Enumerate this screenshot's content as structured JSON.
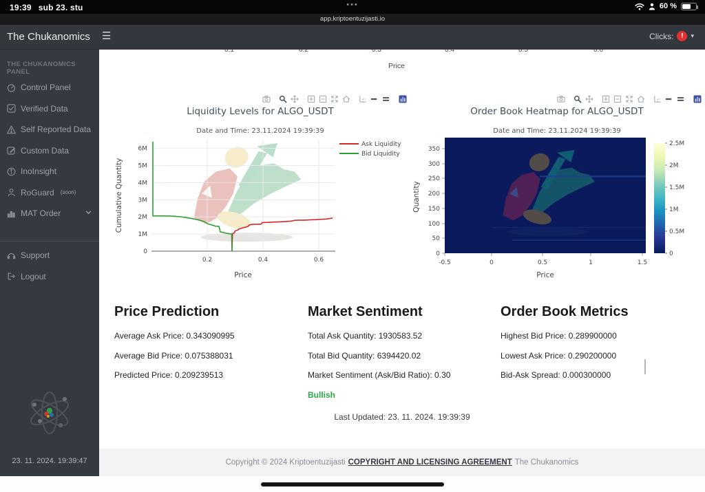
{
  "status_bar": {
    "time": "19:39",
    "date": "sub 23. stu",
    "dots": "•••",
    "battery_percent": "60 %"
  },
  "url_bar": {
    "url": "app.kriptoentuzijasti.io"
  },
  "header": {
    "brand": "The Chukanomics",
    "menu_icon": "☰",
    "clicks_label": "Clicks:",
    "clicks_badge": "!",
    "caret": "▾"
  },
  "sidebar": {
    "section_title": "THE CHUKANOMICS PANEL",
    "items": [
      {
        "label": "Control Panel",
        "icon": "gauge-icon"
      },
      {
        "label": "Verified Data",
        "icon": "check-square-icon"
      },
      {
        "label": "Self Reported Data",
        "icon": "warning-triangle-icon"
      },
      {
        "label": "Custom Data",
        "icon": "pencil-square-icon"
      },
      {
        "label": "InoInsight",
        "icon": "info-circle-icon"
      },
      {
        "label": "RoGuard",
        "suffix": "(soon)",
        "icon": "person-icon"
      },
      {
        "label": "MAT Order",
        "icon": "bar-chart-icon",
        "chevron": true
      }
    ],
    "footer_items": [
      {
        "label": "Support",
        "icon": "headset-icon"
      },
      {
        "label": "Logout",
        "icon": "logout-icon"
      }
    ],
    "timestamp": "23. 11. 2024. 19:39:47"
  },
  "top_chart_remnant": {
    "xticks": [
      "0.1",
      "0.2",
      "0.3",
      "0.4",
      "0.5",
      "0.6"
    ],
    "xlabel": "Price"
  },
  "charts_ui": {
    "modebar_icons": [
      "camera-icon",
      "magnifier-icon",
      "pan-icon",
      "zoom-in-icon",
      "zoom-out-icon",
      "autoscale-icon",
      "home-icon",
      "spikelines-icon",
      "hover-single-icon",
      "hover-compare-icon",
      "plotly-logo-icon"
    ]
  },
  "chart_data": [
    {
      "type": "line",
      "title": "Liquidity Levels for ALGO_USDT",
      "subtitle": "Date and Time: 23.11.2024 19:39:39",
      "xlabel": "Price",
      "ylabel": "Cumulative Quantity",
      "xlim": [
        0.0,
        0.66
      ],
      "ylim": [
        0,
        6500000
      ],
      "xticks": [
        "0.2",
        "0.4",
        "0.6"
      ],
      "yticks": [
        "0",
        "1M",
        "2M",
        "3M",
        "4M",
        "5M",
        "6M"
      ],
      "legend_position": "top-right",
      "grid": true,
      "series": [
        {
          "name": "Ask Liquidity",
          "color": "#d62728",
          "units": "millions",
          "points": [
            [
              0.289,
              0.02
            ],
            [
              0.291,
              1.02
            ],
            [
              0.295,
              1.05
            ],
            [
              0.298,
              1.08
            ],
            [
              0.3,
              1.17
            ],
            [
              0.303,
              1.2
            ],
            [
              0.308,
              1.22
            ],
            [
              0.312,
              1.26
            ],
            [
              0.315,
              1.3
            ],
            [
              0.322,
              1.33
            ],
            [
              0.328,
              1.36
            ],
            [
              0.334,
              1.39
            ],
            [
              0.34,
              1.41
            ],
            [
              0.347,
              1.44
            ],
            [
              0.35,
              1.52
            ],
            [
              0.354,
              1.54
            ],
            [
              0.36,
              1.56
            ],
            [
              0.368,
              1.57
            ],
            [
              0.378,
              1.57
            ],
            [
              0.394,
              1.58
            ],
            [
              0.398,
              1.67
            ],
            [
              0.42,
              1.68
            ],
            [
              0.44,
              1.7
            ],
            [
              0.46,
              1.71
            ],
            [
              0.48,
              1.73
            ],
            [
              0.5,
              1.75
            ],
            [
              0.515,
              1.8
            ],
            [
              0.53,
              1.81
            ],
            [
              0.55,
              1.81
            ],
            [
              0.57,
              1.83
            ],
            [
              0.59,
              1.84
            ],
            [
              0.61,
              1.86
            ],
            [
              0.63,
              1.88
            ],
            [
              0.65,
              1.93
            ]
          ]
        },
        {
          "name": "Bid Liquidity",
          "color": "#2ca02c",
          "units": "millions",
          "points": [
            [
              0.005,
              6.39
            ],
            [
              0.005,
              2.06
            ],
            [
              0.02,
              2.06
            ],
            [
              0.075,
              2.05
            ],
            [
              0.09,
              2.03
            ],
            [
              0.105,
              2.01
            ],
            [
              0.12,
              1.97
            ],
            [
              0.135,
              1.93
            ],
            [
              0.15,
              1.89
            ],
            [
              0.16,
              1.85
            ],
            [
              0.17,
              1.82
            ],
            [
              0.178,
              1.78
            ],
            [
              0.188,
              1.73
            ],
            [
              0.195,
              1.67
            ],
            [
              0.2,
              1.62
            ],
            [
              0.205,
              1.58
            ],
            [
              0.212,
              1.55
            ],
            [
              0.218,
              1.52
            ],
            [
              0.225,
              1.49
            ],
            [
              0.228,
              1.46
            ],
            [
              0.242,
              1.45
            ],
            [
              0.245,
              1.3
            ],
            [
              0.247,
              1.12
            ],
            [
              0.255,
              1.1
            ],
            [
              0.262,
              1.07
            ],
            [
              0.268,
              1.05
            ],
            [
              0.275,
              1.03
            ],
            [
              0.283,
              1.01
            ],
            [
              0.288,
              1.0
            ],
            [
              0.289,
              0.02
            ]
          ]
        }
      ]
    },
    {
      "type": "heatmap",
      "title": "Order Book Heatmap for ALGO_USDT",
      "subtitle": "Date and Time: 23.11.2024 19:39:39",
      "xlabel": "Price",
      "ylabel": "Quantity",
      "xticks": [
        "-0.5",
        "0",
        "0.5",
        "1",
        "1.5"
      ],
      "yticks": [
        "0",
        "50",
        "100",
        "150",
        "200",
        "250",
        "300",
        "350"
      ],
      "z_uniform_value": 0,
      "background": "#0a1a5c",
      "colorbar": {
        "ticks": [
          "0",
          "0.5M",
          "1M",
          "1.5M",
          "2M",
          "2.5M"
        ],
        "colors": [
          "#081d58",
          "#253494",
          "#225ea8",
          "#1d91c0",
          "#41b6c4",
          "#7fcdbb",
          "#c7e9b4",
          "#edf8b1",
          "#ffffd9"
        ]
      }
    }
  ],
  "metrics": {
    "price_prediction": {
      "title": "Price Prediction",
      "rows": [
        "Average Ask Price: 0.343090995",
        "Average Bid Price: 0.075388031",
        "Predicted Price: 0.209239513"
      ]
    },
    "market_sentiment": {
      "title": "Market Sentiment",
      "rows": [
        "Total Ask Quantity: 1930583.52",
        "Total Bid Quantity: 6394420.02",
        "Market Sentiment (Ask/Bid Ratio): 0.30"
      ],
      "status": "Bullish",
      "status_color": "#28a745"
    },
    "order_book": {
      "title": "Order Book Metrics",
      "rows": [
        "Highest Bid Price: 0.289900000",
        "Lowest Ask Price: 0.290200000",
        "Bid-Ask Spread: 0.000300000"
      ]
    }
  },
  "last_updated": "Last Updated: 23. 11. 2024. 19:39:39",
  "footer": {
    "copyright_prefix": "Copyright © 2024 Kriptoentuzijasti",
    "link": "COPYRIGHT AND LICENSING AGREEMENT",
    "suffix": "The Chukanomics"
  }
}
